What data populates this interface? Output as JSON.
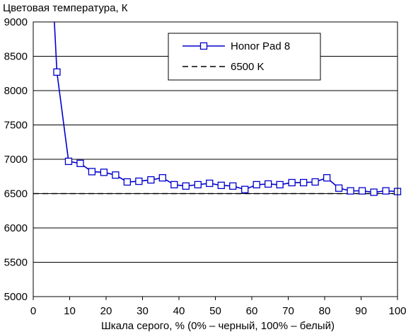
{
  "chart_data": {
    "type": "line",
    "title": "",
    "ylabel": "Цветовая температура, К",
    "xlabel": "Шкала серого, % (0% – черный, 100% – белый)",
    "xlim": [
      0,
      100
    ],
    "ylim": [
      5000,
      9000
    ],
    "x_ticks": [
      "0",
      "10",
      "20",
      "30",
      "40",
      "50",
      "60",
      "70",
      "80",
      "90",
      "100"
    ],
    "y_ticks": [
      "5000",
      "5500",
      "6000",
      "6500",
      "7000",
      "7500",
      "8000",
      "8500",
      "9000"
    ],
    "grid": "horizontal",
    "legend_position": "top-right",
    "series": [
      {
        "name": "Honor Pad 8",
        "color": "#0000cc",
        "marker": "open-square",
        "x": [
          5.8,
          6.5,
          9.7,
          12.9,
          16.1,
          19.4,
          22.6,
          25.8,
          29.0,
          32.3,
          35.5,
          38.7,
          41.9,
          45.2,
          48.4,
          51.6,
          54.8,
          58.1,
          61.3,
          64.5,
          67.7,
          71.0,
          74.2,
          77.4,
          80.6,
          83.9,
          87.1,
          90.3,
          93.5,
          96.8,
          100
        ],
        "y": [
          9000,
          8270,
          6970,
          6940,
          6820,
          6810,
          6770,
          6670,
          6680,
          6700,
          6730,
          6630,
          6610,
          6630,
          6650,
          6620,
          6610,
          6560,
          6630,
          6640,
          6630,
          6660,
          6660,
          6670,
          6730,
          6580,
          6540,
          6540,
          6520,
          6540,
          6530
        ]
      },
      {
        "name": "6500 K",
        "color": "#000000",
        "style": "dashed",
        "x": [
          0,
          100
        ],
        "y": [
          6500,
          6500
        ]
      }
    ]
  }
}
